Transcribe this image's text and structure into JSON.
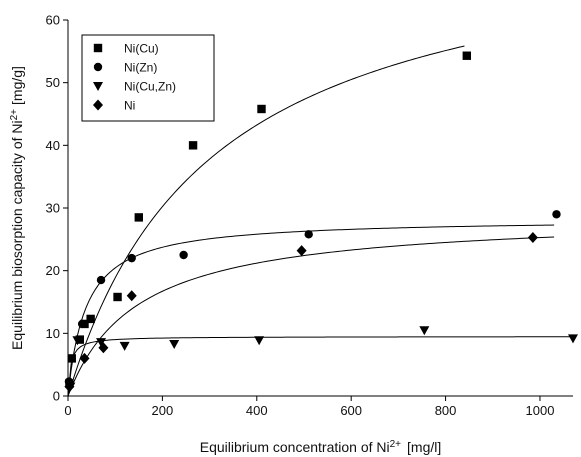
{
  "chart_data": {
    "type": "scatter",
    "title": "",
    "xlabel": "Equilibrium concentration of Ni",
    "xlabel_sup": "2+",
    "xlabel_unit": "[mg/l]",
    "ylabel": "Equilibrium biosorption capacity of Ni",
    "ylabel_sup": "2+",
    "ylabel_unit": "[mg/g]",
    "xlim": [
      0,
      1070
    ],
    "ylim": [
      0,
      60
    ],
    "xticks": [
      0,
      200,
      400,
      600,
      800,
      1000
    ],
    "yticks": [
      0,
      10,
      20,
      30,
      40,
      50,
      60
    ],
    "grid": false,
    "legend_position": "top-left",
    "series": [
      {
        "name": "Ni(Cu)",
        "marker": "square",
        "x": [
          3,
          8,
          25,
          35,
          48,
          105,
          150,
          265,
          410,
          845
        ],
        "y": [
          2,
          6,
          9,
          11.5,
          12.3,
          15.8,
          28.5,
          40,
          45.8,
          54.3
        ],
        "fit": {
          "model": "langmuir",
          "qmax": 76,
          "b": 0.0033,
          "x_end": 840
        }
      },
      {
        "name": "Ni(Zn)",
        "marker": "circle",
        "x": [
          2,
          30,
          70,
          135,
          245,
          510,
          1035
        ],
        "y": [
          2.3,
          11.5,
          18.5,
          22,
          22.5,
          25.8,
          29
        ],
        "fit": {
          "model": "langmuir",
          "qmax": 28.3,
          "b": 0.026,
          "x_end": 1030
        }
      },
      {
        "name": "Ni(Cu,Zn)",
        "marker": "triangle-down",
        "x": [
          5,
          20,
          70,
          120,
          225,
          405,
          755,
          1070
        ],
        "y": [
          1.5,
          8.9,
          8.6,
          8,
          8.3,
          8.9,
          10.5,
          9.2
        ],
        "fit": {
          "model": "langmuir",
          "qmax": 9.5,
          "b": 0.18,
          "x_end": 1070
        }
      },
      {
        "name": "Ni",
        "marker": "diamond",
        "x": [
          3,
          35,
          75,
          135,
          495,
          985
        ],
        "y": [
          1.5,
          6,
          7.7,
          16,
          23.2,
          25.3
        ],
        "fit": {
          "model": "langmuir",
          "qmax": 29,
          "b": 0.0068,
          "x_end": 1030
        }
      }
    ]
  }
}
